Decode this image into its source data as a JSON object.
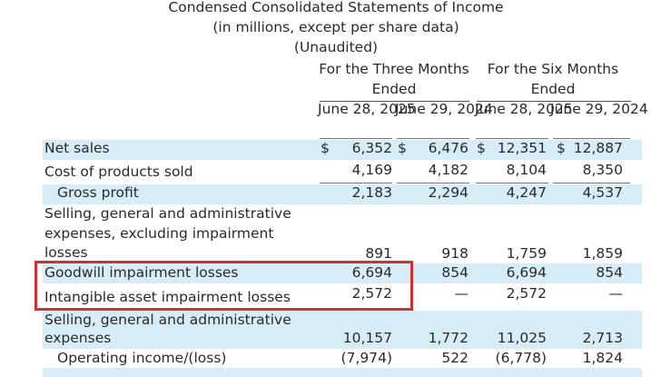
{
  "statement": {
    "title": "Condensed Consolidated Statements of Income",
    "subtitle": "(in millions, except per share data)",
    "audit": "(Unaudited)",
    "groups": [
      "For the Three Months Ended",
      "For the Six Months Ended"
    ],
    "columns": [
      "June 28, 2025",
      "June 29, 2024",
      "June 28, 2025",
      "June 29, 2024"
    ],
    "rows": [
      {
        "label": "Net sales",
        "values": [
          "6,352",
          "6,476",
          "12,351",
          "12,887"
        ],
        "currency": "$"
      },
      {
        "label": "Cost of products sold",
        "values": [
          "4,169",
          "4,182",
          "8,104",
          "8,350"
        ]
      },
      {
        "label": "Gross profit",
        "values": [
          "2,183",
          "2,294",
          "4,247",
          "4,537"
        ]
      },
      {
        "label": "Selling, general and administrative expenses, excluding impairment losses",
        "values": [
          "891",
          "918",
          "1,759",
          "1,859"
        ]
      },
      {
        "label": "Goodwill impairment losses",
        "values": [
          "6,694",
          "854",
          "6,694",
          "854"
        ]
      },
      {
        "label": "Intangible asset impairment losses",
        "values": [
          "2,572",
          "—",
          "2,572",
          "—"
        ]
      },
      {
        "label": "Selling, general and administrative expenses",
        "values": [
          "10,157",
          "1,772",
          "11,025",
          "2,713"
        ]
      },
      {
        "label": "Operating income/(loss)",
        "values": [
          "(7,974)",
          "522",
          "(6,778)",
          "1,824"
        ]
      }
    ]
  },
  "annotation": {
    "color": "#d32f2f"
  },
  "colors": {
    "highlight": "#d6edf8",
    "text": "#2a2a2a"
  }
}
